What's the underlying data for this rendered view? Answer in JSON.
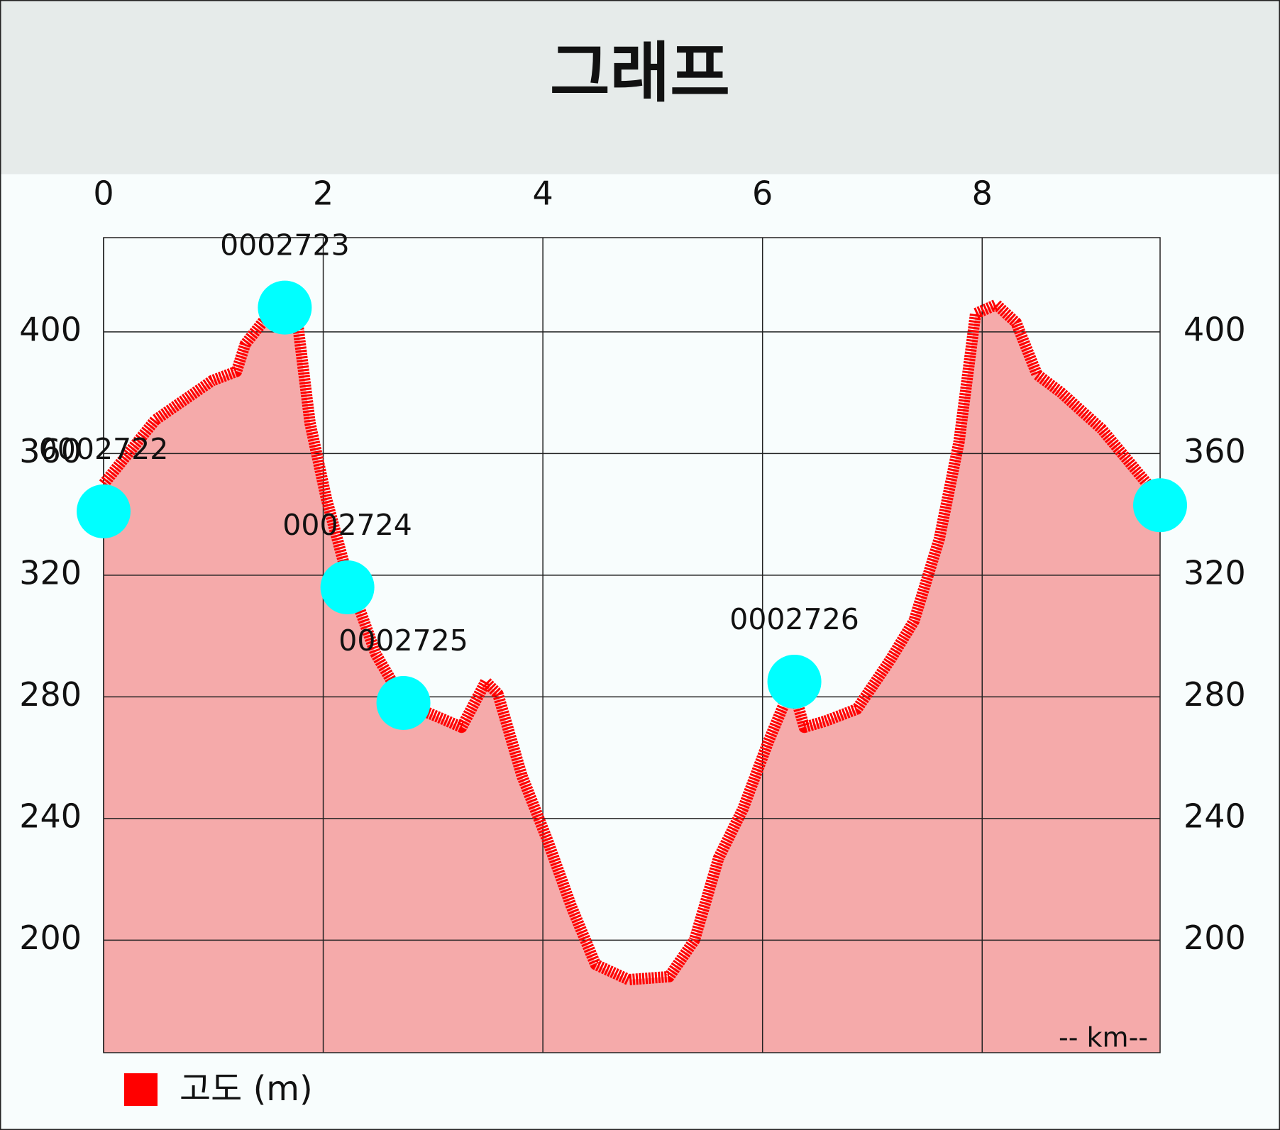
{
  "chart_data": {
    "type": "area",
    "title": "그래프",
    "x": [
      0,
      0.47,
      0.99,
      1.21,
      1.29,
      1.51,
      1.66,
      1.77,
      1.88,
      2.03,
      2.21,
      2.48,
      2.74,
      3.07,
      3.26,
      3.48,
      3.59,
      3.81,
      4.04,
      4.26,
      4.48,
      4.78,
      5.15,
      5.38,
      5.6,
      5.82,
      6.05,
      6.27,
      6.38,
      6.57,
      6.86,
      7.16,
      7.38,
      7.61,
      7.79,
      7.94,
      8.13,
      8.31,
      8.5,
      8.72,
      9.09,
      9.39,
      9.62
    ],
    "series": [
      {
        "name": "고도 (m)",
        "color": "#ff0000",
        "fill": "#f5aaaa",
        "values": [
          350,
          371,
          384,
          387,
          396,
          406,
          409,
          402,
          370,
          345,
          321,
          294,
          278,
          273,
          270,
          285,
          281,
          254,
          233,
          211,
          192,
          187,
          188,
          200,
          227,
          243,
          265,
          284,
          270,
          272,
          276,
          292,
          305,
          332,
          364,
          406,
          409,
          403,
          386,
          380,
          368,
          355,
          345
        ]
      }
    ],
    "markers": {
      "color": "#00ffff",
      "x": [
        0,
        1.65,
        2.22,
        2.73,
        6.29,
        9.62
      ],
      "values": [
        341,
        408,
        316,
        278,
        285,
        343
      ],
      "labels": [
        "0002722",
        "0002723",
        "0002724",
        "0002725",
        "0002726",
        null
      ]
    },
    "x_unit_label": "-- km--",
    "xlim": [
      0,
      9.62
    ],
    "xticks": [
      0,
      2,
      4,
      6,
      8
    ],
    "ylim": [
      163,
      431
    ],
    "yticks": [
      200,
      240,
      280,
      320,
      360,
      400
    ],
    "grid": true
  }
}
